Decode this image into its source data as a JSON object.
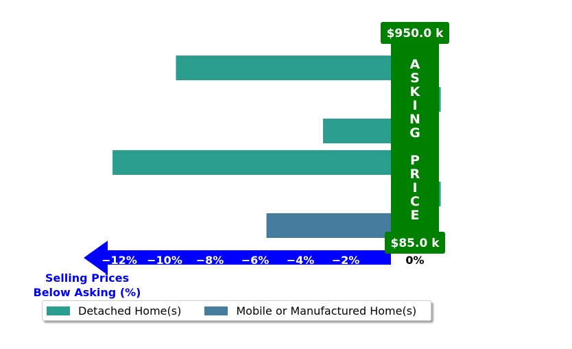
{
  "chart_data": {
    "type": "bar",
    "orientation": "horizontal",
    "xlabel": "Selling Prices\nBelow Asking (%)",
    "xlim": [
      -14,
      2
    ],
    "xticks": [
      "−12%",
      "−10%",
      "−8%",
      "−6%",
      "−4%",
      "−2%",
      "0%"
    ],
    "xtick_values": [
      -12,
      -10,
      -8,
      -6,
      -4,
      -2,
      0
    ],
    "bars": [
      {
        "value": -9.5,
        "series": "Detached Home(s)"
      },
      {
        "value": 2.2,
        "series": "Detached Home(s)"
      },
      {
        "value": -3.0,
        "series": "Detached Home(s)"
      },
      {
        "value": -12.3,
        "series": "Detached Home(s)"
      },
      {
        "value": 2.2,
        "series": "Detached Home(s)"
      },
      {
        "value": -5.5,
        "series": "Mobile or Manufactured Home(s)"
      }
    ],
    "series": [
      {
        "name": "Detached Home(s)",
        "color": "#2a9d8f"
      },
      {
        "name": "Mobile or Manufactured Home(s)",
        "color": "#457b9d"
      }
    ],
    "asking_price_label": "ASKING PRICE",
    "asking_price_letters_top": [
      "A",
      "S",
      "K",
      "I",
      "N",
      "G"
    ],
    "asking_price_letters_bottom": [
      "P",
      "R",
      "I",
      "C",
      "E"
    ],
    "price_max": "$950.0 k",
    "price_min": "$85.0 k",
    "legend_position": "bottom",
    "grid": false
  },
  "colors": {
    "asking_band": "#008000",
    "arrow": "#0000ff"
  }
}
